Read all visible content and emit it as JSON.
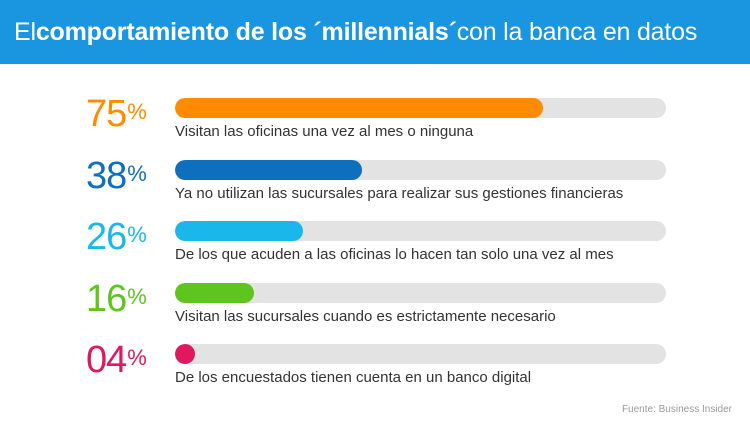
{
  "header": {
    "title_prefix": "El ",
    "title_bold": "comportamiento de los ´millennials´",
    "title_suffix": " con la banca en datos",
    "background_color": "#1a95e0"
  },
  "chart_data": {
    "type": "bar",
    "orientation": "horizontal",
    "xlim": [
      0,
      100
    ],
    "grid": false,
    "legend": "none",
    "items": [
      {
        "label": "75",
        "value": 75,
        "color": "#ff8c00",
        "description": "Visitan las oficinas una vez al mes o ninguna"
      },
      {
        "label": "38",
        "value": 38,
        "color": "#0f6fbf",
        "description": "Ya no utilizan las sucursales para realizar sus gestiones financieras"
      },
      {
        "label": "26",
        "value": 26,
        "color": "#1ab8ea",
        "description": "De los que acuden a las oficinas lo hacen tan solo una vez al mes"
      },
      {
        "label": "16",
        "value": 16,
        "color": "#5ec41e",
        "description": "Visitan las sucursales cuando es estrictamente necesario"
      },
      {
        "label": "04",
        "value": 4,
        "color": "#e0185f",
        "description": "De los encuestados tienen cuenta en un banco digital"
      }
    ],
    "percent_sign": "%",
    "track_color": "#e3e3e3"
  },
  "footer": {
    "source": "Fuente: Business Insider"
  }
}
